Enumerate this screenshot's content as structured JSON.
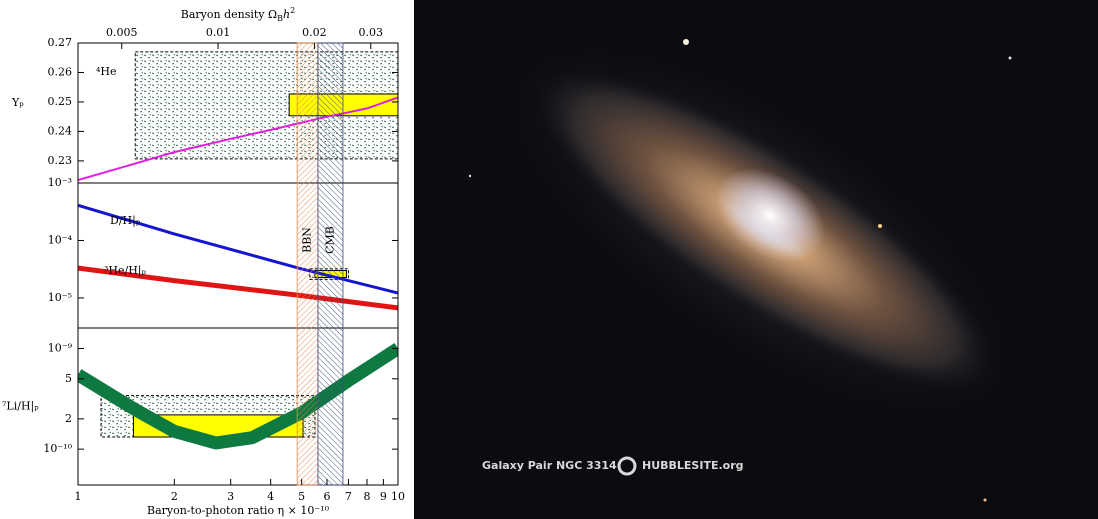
{
  "chart_data": {
    "type": "line",
    "x_label": "Baryon-to-photon ratio η × 10⁻¹⁰",
    "x2_label": [
      "Baryon density Ω",
      "B",
      "h",
      "2"
    ],
    "xscale": "log",
    "xlim": [
      1,
      10
    ],
    "xticks": [
      1,
      2,
      3,
      4,
      5,
      6,
      7,
      8,
      9,
      10
    ],
    "x2lim": [
      0.00365,
      0.0365
    ],
    "x2ticks": [
      0.005,
      0.01,
      0.02,
      0.03
    ],
    "bands": [
      {
        "label": "BBN",
        "range": [
          4.84,
          5.62
        ],
        "color": "#e8874a"
      },
      {
        "label": "CMB",
        "range": [
          5.62,
          6.73
        ],
        "color": "#3a4a7a"
      }
    ],
    "panels": [
      {
        "ylabel": "Yₚ",
        "yscale": "linear",
        "ylim": [
          0.2225,
          0.27
        ],
        "yticks": [
          0.23,
          0.24,
          0.25,
          0.26,
          0.27
        ],
        "regions": [
          {
            "style": "dotted",
            "x": [
              1.51,
              10
            ],
            "y": [
              0.2307,
              0.267
            ]
          },
          {
            "style": "yellow",
            "x": [
              4.57,
              10
            ],
            "y": [
              0.2453,
              0.2527
            ]
          }
        ],
        "series": [
          {
            "name": "⁴He",
            "color": "#e01ee0",
            "width": 2,
            "x": [
              1,
              1.5,
              2,
              3,
              4,
              5,
              6,
              7,
              8,
              10
            ],
            "values": [
              0.2235,
              0.229,
              0.233,
              0.2375,
              0.2405,
              0.243,
              0.245,
              0.2465,
              0.2478,
              0.2515
            ]
          }
        ]
      },
      {
        "yscale": "log",
        "ylim": [
          3e-06,
          0.001
        ],
        "yticks": [
          {
            "value": 0.001,
            "label": "10⁻³"
          },
          {
            "value": 0.0001,
            "label": "10⁻⁴"
          },
          {
            "value": 1e-05,
            "label": "10⁻⁵"
          }
        ],
        "regions": [
          {
            "style": "dotted",
            "x": [
              5.3,
              7.0
            ],
            "y": [
              2.1e-05,
              3.2e-05
            ]
          },
          {
            "style": "yellow",
            "x": [
              5.5,
              6.9
            ],
            "y": [
              2.27e-05,
              3e-05
            ]
          }
        ],
        "series": [
          {
            "name": "D/H|ₚ",
            "color": "#1414d2",
            "width": 3,
            "x": [
              1,
              2,
              5,
              10
            ],
            "values": [
              0.00041,
              0.00013,
              3.2e-05,
              1.22e-05
            ]
          },
          {
            "name": "³He/H|ₚ",
            "color": "#e01414",
            "width": 5,
            "x": [
              1,
              2,
              5,
              10
            ],
            "values": [
              3.3e-05,
              2e-05,
              1.1e-05,
              6.7e-06
            ]
          }
        ]
      },
      {
        "ylabel": "⁷Li/H|ₚ",
        "yscale": "log",
        "ylim": [
          4.4e-11,
          1.6e-09
        ],
        "yticks": [
          {
            "value": 1e-09,
            "label": "10⁻⁹"
          },
          {
            "value": 5e-10,
            "label": "5"
          },
          {
            "value": 2e-10,
            "label": "2"
          },
          {
            "value": 1e-10,
            "label": "10⁻¹⁰"
          }
        ],
        "regions": [
          {
            "style": "dotted",
            "x": [
              1.18,
              5.5
            ],
            "y": [
              1.32e-10,
              3.4e-10
            ]
          },
          {
            "style": "yellow",
            "x": [
              1.49,
              5.05
            ],
            "y": [
              1.32e-10,
              2.19e-10
            ]
          }
        ],
        "series": [
          {
            "color": "#0e7a42",
            "width": 13,
            "x": [
              1,
              1.5,
              2,
              2.7,
              3.5,
              5,
              7,
              10
            ],
            "values": [
              5.5e-10,
              2.5e-10,
              1.5e-10,
              1.15e-10,
              1.3e-10,
              2.3e-10,
              4.8e-10,
              1e-09
            ]
          }
        ]
      }
    ]
  },
  "image": {
    "caption": "Galaxy Pair NGC 3314",
    "credit": "HUBBLESITE.org"
  }
}
